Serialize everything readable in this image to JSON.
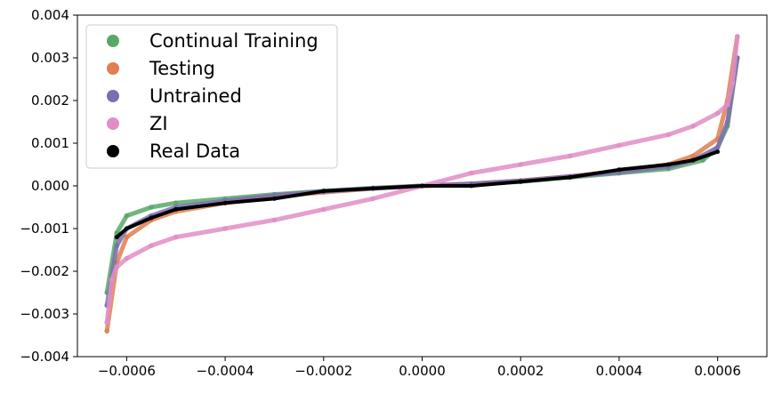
{
  "chart_data": {
    "type": "scatter",
    "title": "",
    "xlabel": "",
    "ylabel": "",
    "xlim": [
      -0.0007,
      0.0007
    ],
    "ylim": [
      -0.004,
      0.004
    ],
    "x_ticks": [
      -0.0006,
      -0.0004,
      -0.0002,
      0.0,
      0.0002,
      0.0004,
      0.0006
    ],
    "x_tick_labels": [
      "−0.0006",
      "−0.0004",
      "−0.0002",
      "0.0000",
      "0.0002",
      "0.0004",
      "0.0006"
    ],
    "y_ticks": [
      -0.004,
      -0.003,
      -0.002,
      -0.001,
      0.0,
      0.001,
      0.002,
      0.003,
      0.004
    ],
    "y_tick_labels": [
      "−0.004",
      "−0.003",
      "−0.002",
      "−0.001",
      "0.000",
      "0.001",
      "0.002",
      "0.003",
      "0.004"
    ],
    "grid": false,
    "legend_position": "top-left",
    "series": [
      {
        "name": "Continual Training",
        "color": "#59a86a",
        "points": [
          [
            -0.00064,
            -0.0025
          ],
          [
            -0.00062,
            -0.0011
          ],
          [
            -0.0006,
            -0.0007
          ],
          [
            -0.00055,
            -0.0005
          ],
          [
            -0.0005,
            -0.0004
          ],
          [
            -0.0004,
            -0.0003
          ],
          [
            -0.0003,
            -0.0002
          ],
          [
            -0.0002,
            -0.00012
          ],
          [
            -0.0001,
            -5e-05
          ],
          [
            0.0,
            0.0
          ],
          [
            0.0001,
            4e-05
          ],
          [
            0.0002,
            0.0001
          ],
          [
            0.0003,
            0.0002
          ],
          [
            0.0004,
            0.0003
          ],
          [
            0.0005,
            0.0004
          ],
          [
            0.00057,
            0.0006
          ],
          [
            0.0006,
            0.0009
          ],
          [
            0.00062,
            0.0014
          ],
          [
            0.00064,
            0.003
          ]
        ]
      },
      {
        "name": "Testing",
        "color": "#e07f4f",
        "points": [
          [
            -0.00064,
            -0.0034
          ],
          [
            -0.00062,
            -0.0018
          ],
          [
            -0.0006,
            -0.0012
          ],
          [
            -0.00055,
            -0.0008
          ],
          [
            -0.0005,
            -0.0006
          ],
          [
            -0.0004,
            -0.0004
          ],
          [
            -0.0003,
            -0.00025
          ],
          [
            -0.0002,
            -0.00015
          ],
          [
            -0.0001,
            -6e-05
          ],
          [
            0.0,
            0.0
          ],
          [
            0.0001,
            5e-05
          ],
          [
            0.0002,
            0.00012
          ],
          [
            0.0003,
            0.00022
          ],
          [
            0.0004,
            0.00035
          ],
          [
            0.0005,
            0.0005
          ],
          [
            0.00055,
            0.0007
          ],
          [
            0.0006,
            0.0011
          ],
          [
            0.00062,
            0.002
          ],
          [
            0.00064,
            0.0035
          ]
        ]
      },
      {
        "name": "Untrained",
        "color": "#7b6fb0",
        "points": [
          [
            -0.00064,
            -0.0028
          ],
          [
            -0.00062,
            -0.0014
          ],
          [
            -0.0006,
            -0.001
          ],
          [
            -0.00055,
            -0.0007
          ],
          [
            -0.0005,
            -0.0005
          ],
          [
            -0.0004,
            -0.00035
          ],
          [
            -0.0003,
            -0.00022
          ],
          [
            -0.0002,
            -0.00013
          ],
          [
            -0.0001,
            -6e-05
          ],
          [
            0.0,
            0.0
          ],
          [
            0.0001,
            5e-05
          ],
          [
            0.0002,
            0.00012
          ],
          [
            0.0003,
            0.00022
          ],
          [
            0.0004,
            0.00032
          ],
          [
            0.0005,
            0.00045
          ],
          [
            0.00055,
            0.0006
          ],
          [
            0.0006,
            0.0009
          ],
          [
            0.00062,
            0.0015
          ],
          [
            0.00064,
            0.003
          ]
        ]
      },
      {
        "name": "ZI",
        "color": "#e08ec6",
        "points": [
          [
            -0.00064,
            -0.0032
          ],
          [
            -0.00063,
            -0.0022
          ],
          [
            -0.00062,
            -0.0019
          ],
          [
            -0.0006,
            -0.0017
          ],
          [
            -0.00055,
            -0.0014
          ],
          [
            -0.0005,
            -0.0012
          ],
          [
            -0.0004,
            -0.001
          ],
          [
            -0.0003,
            -0.0008
          ],
          [
            -0.0002,
            -0.00055
          ],
          [
            -0.0001,
            -0.0003
          ],
          [
            0.0,
            0.0
          ],
          [
            0.0001,
            0.0003
          ],
          [
            0.0002,
            0.0005
          ],
          [
            0.0003,
            0.0007
          ],
          [
            0.0004,
            0.00095
          ],
          [
            0.0005,
            0.0012
          ],
          [
            0.00055,
            0.0014
          ],
          [
            0.0006,
            0.0017
          ],
          [
            0.00062,
            0.0019
          ],
          [
            0.00063,
            0.0024
          ],
          [
            0.00064,
            0.0035
          ]
        ]
      },
      {
        "name": "Real Data",
        "color": "#000000",
        "points": [
          [
            -0.00062,
            -0.0012
          ],
          [
            -0.0006,
            -0.001
          ],
          [
            -0.00055,
            -0.00075
          ],
          [
            -0.0005,
            -0.00055
          ],
          [
            -0.0004,
            -0.0004
          ],
          [
            -0.0003,
            -0.0003
          ],
          [
            -0.0002,
            -0.00012
          ],
          [
            -0.0001,
            -6e-05
          ],
          [
            0.0,
            0.0
          ],
          [
            0.0001,
            0.0
          ],
          [
            0.0002,
            0.0001
          ],
          [
            0.0003,
            0.0002
          ],
          [
            0.0004,
            0.00038
          ],
          [
            0.0005,
            0.0005
          ],
          [
            0.00055,
            0.0006
          ],
          [
            0.0006,
            0.0008
          ]
        ]
      }
    ]
  }
}
